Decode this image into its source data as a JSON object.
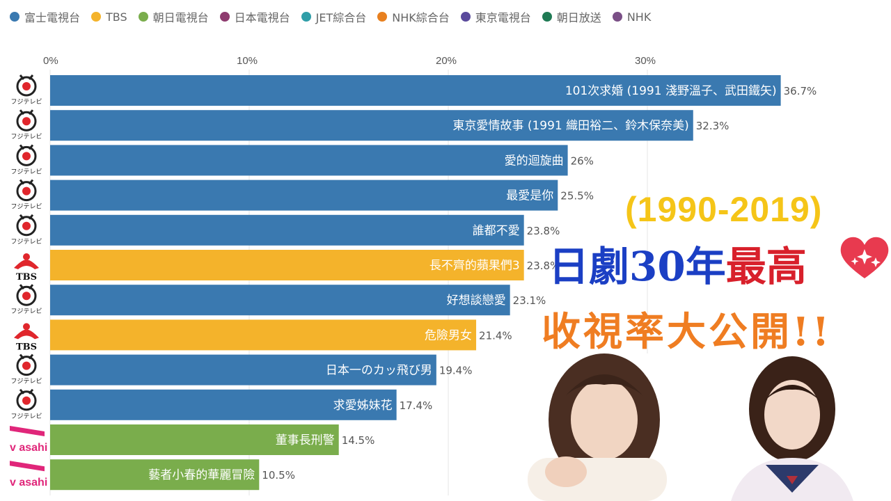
{
  "legend": [
    {
      "label": "富士電視台",
      "color": "#3a79b0"
    },
    {
      "label": "TBS",
      "color": "#f4b32b"
    },
    {
      "label": "朝日電視台",
      "color": "#7aad4c"
    },
    {
      "label": "日本電視台",
      "color": "#8e3b6f"
    },
    {
      "label": "JET綜合台",
      "color": "#2f9ea8"
    },
    {
      "label": "NHK綜合台",
      "color": "#e8801f"
    },
    {
      "label": "東京電視台",
      "color": "#5a4a9c"
    },
    {
      "label": "朝日放送",
      "color": "#1f7a54"
    },
    {
      "label": "NHK",
      "color": "#7a4f86"
    }
  ],
  "overlay": {
    "years": "(1990-2019)",
    "title_part1": "日劇30年",
    "title_part2": "最高",
    "subtitle": "收視率大公開!!"
  },
  "chart_data": {
    "type": "bar",
    "orientation": "horizontal",
    "xlim": [
      0,
      37
    ],
    "ticks": [
      0,
      10,
      20,
      30
    ],
    "tick_labels": [
      "0%",
      "10%",
      "20%",
      "30%"
    ],
    "grid": true,
    "bars": [
      {
        "label": "101次求婚 (1991 淺野溫子、武田鐵矢)",
        "value": 36.7,
        "value_label": "36.7%",
        "network": "富士電視台",
        "logo": "フジテレビ"
      },
      {
        "label": "東京愛情故事 (1991 織田裕二、鈴木保奈美)",
        "value": 32.3,
        "value_label": "32.3%",
        "network": "富士電視台",
        "logo": "フジテレビ"
      },
      {
        "label": "愛的迴旋曲",
        "value": 26,
        "value_label": "26%",
        "network": "富士電視台",
        "logo": "フジテレビ"
      },
      {
        "label": "最愛是你",
        "value": 25.5,
        "value_label": "25.5%",
        "network": "富士電視台",
        "logo": "フジテレビ"
      },
      {
        "label": "誰都不愛",
        "value": 23.8,
        "value_label": "23.8%",
        "network": "富士電視台",
        "logo": "フジテレビ"
      },
      {
        "label": "長不齊的蘋果們3",
        "value": 23.8,
        "value_label": "23.8%",
        "network": "TBS",
        "logo": "TBS"
      },
      {
        "label": "好想談戀愛",
        "value": 23.1,
        "value_label": "23.1%",
        "network": "富士電視台",
        "logo": "フジテレビ"
      },
      {
        "label": "危險男女",
        "value": 21.4,
        "value_label": "21.4%",
        "network": "TBS",
        "logo": "TBS"
      },
      {
        "label": "日本一のカッ飛び男",
        "value": 19.4,
        "value_label": "19.4%",
        "network": "富士電視台",
        "logo": "フジテレビ"
      },
      {
        "label": "求愛姊妹花",
        "value": 17.4,
        "value_label": "17.4%",
        "network": "富士電視台",
        "logo": "フジテレビ"
      },
      {
        "label": "董事長刑警",
        "value": 14.5,
        "value_label": "14.5%",
        "network": "朝日電視台",
        "logo": "v asahi"
      },
      {
        "label": "藝者小春的華麗冒險",
        "value": 10.5,
        "value_label": "10.5%",
        "network": "朝日電視台",
        "logo": "v asahi"
      }
    ]
  }
}
